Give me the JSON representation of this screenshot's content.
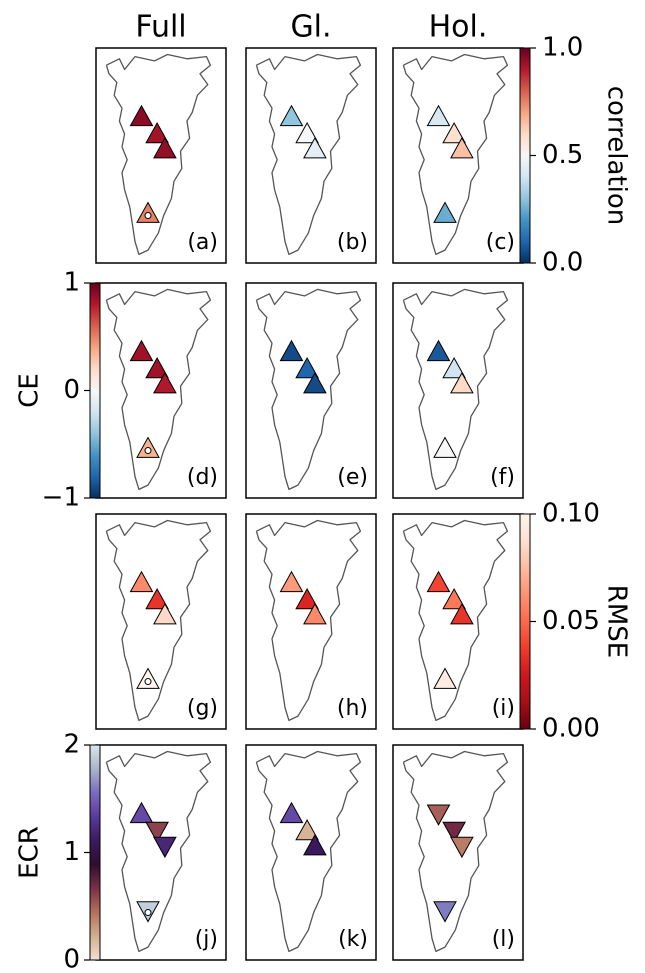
{
  "columns": [
    "Full",
    "Gl.",
    "Hol."
  ],
  "rows": [
    {
      "colorbar": {
        "label": "correlation",
        "side": "right",
        "lim": [
          0,
          1
        ],
        "ticks": [
          {
            "value": 0,
            "label": "0.0"
          },
          {
            "value": 0.5,
            "label": "0.5"
          },
          {
            "value": 1,
            "label": "1.0"
          }
        ],
        "colormap": [
          "#053061",
          "#2166ac",
          "#4393c3",
          "#92c5de",
          "#d1e5f0",
          "#f7f7f7",
          "#fddbc7",
          "#f4a582",
          "#d6604d",
          "#b2182b",
          "#67001f"
        ]
      },
      "panels": [
        {
          "label": "(a)",
          "values": [
            0.95,
            0.92,
            0.94,
            0.75
          ],
          "markers": [
            "up",
            "up",
            "up",
            "up"
          ]
        },
        {
          "label": "(b)",
          "values": [
            0.3,
            0.5,
            0.45,
            null
          ],
          "markers": [
            "up",
            "up",
            "up",
            "up"
          ]
        },
        {
          "label": "(c)",
          "values": [
            0.42,
            0.58,
            0.65,
            0.25
          ],
          "markers": [
            "up",
            "up",
            "up",
            "up"
          ]
        }
      ]
    },
    {
      "colorbar": {
        "label": "CE",
        "side": "left",
        "lim": [
          -1,
          1
        ],
        "ticks": [
          {
            "value": -1,
            "label": "−1"
          },
          0,
          1
        ],
        "colormap": [
          "#053061",
          "#2166ac",
          "#4393c3",
          "#92c5de",
          "#d1e5f0",
          "#f7f7f7",
          "#fddbc7",
          "#f4a582",
          "#d6604d",
          "#b2182b",
          "#67001f"
        ]
      },
      "panels": [
        {
          "label": "(d)",
          "values": [
            0.85,
            0.85,
            0.8,
            0.35
          ],
          "markers": [
            "up",
            "up",
            "up",
            "up"
          ]
        },
        {
          "label": "(e)",
          "values": [
            -0.9,
            -0.8,
            -0.9,
            null
          ],
          "markers": [
            "up",
            "up",
            "up",
            "up"
          ]
        },
        {
          "label": "(f)",
          "values": [
            -0.85,
            -0.2,
            0.2,
            0.0
          ],
          "markers": [
            "up",
            "up",
            "up",
            "up"
          ]
        }
      ]
    },
    {
      "colorbar": {
        "label": "RMSE",
        "side": "right",
        "lim": [
          0,
          0.1
        ],
        "ticks": [
          {
            "value": 0,
            "label": "0.00"
          },
          {
            "value": 0.05,
            "label": "0.05"
          },
          {
            "value": 0.1,
            "label": "0.10"
          }
        ],
        "colormap": [
          "#67000d",
          "#a50f15",
          "#cb181d",
          "#ef3b2c",
          "#fb6a4a",
          "#fc9272",
          "#fcbba1",
          "#fee0d2",
          "#fff5f0"
        ]
      },
      "panels": [
        {
          "label": "(g)",
          "values": [
            0.06,
            0.035,
            0.085,
            0.1
          ],
          "markers": [
            "up",
            "up",
            "up",
            "up"
          ]
        },
        {
          "label": "(h)",
          "values": [
            0.065,
            0.03,
            0.06,
            null
          ],
          "markers": [
            "up",
            "up",
            "up",
            "up"
          ]
        },
        {
          "label": "(i)",
          "values": [
            0.04,
            0.055,
            0.035,
            0.095
          ],
          "markers": [
            "up",
            "up",
            "up",
            "up"
          ]
        }
      ]
    },
    {
      "colorbar": {
        "label": "ECR",
        "side": "left",
        "lim": [
          0,
          2
        ],
        "ticks": [
          0,
          1,
          2
        ],
        "colormap": [
          "#efe3d6",
          "#d4ae90",
          "#b4705a",
          "#7a3048",
          "#2e0d30",
          "#3a1a5e",
          "#5a3a9a",
          "#7a6cc0",
          "#a6b6cc",
          "#dde4ea"
        ]
      },
      "panels": [
        {
          "label": "(j)",
          "values": [
            1.4,
            0.6,
            1.2,
            1.9
          ],
          "markers": [
            "up",
            "down",
            "down",
            "down"
          ]
        },
        {
          "label": "(k)",
          "values": [
            1.4,
            0.2,
            1.1,
            null
          ],
          "markers": [
            "up",
            "up",
            "up",
            "up"
          ]
        },
        {
          "label": "(l)",
          "values": [
            0.5,
            0.7,
            0.4,
            1.6
          ],
          "markers": [
            "down",
            "down",
            "down",
            "down"
          ]
        }
      ]
    }
  ]
}
